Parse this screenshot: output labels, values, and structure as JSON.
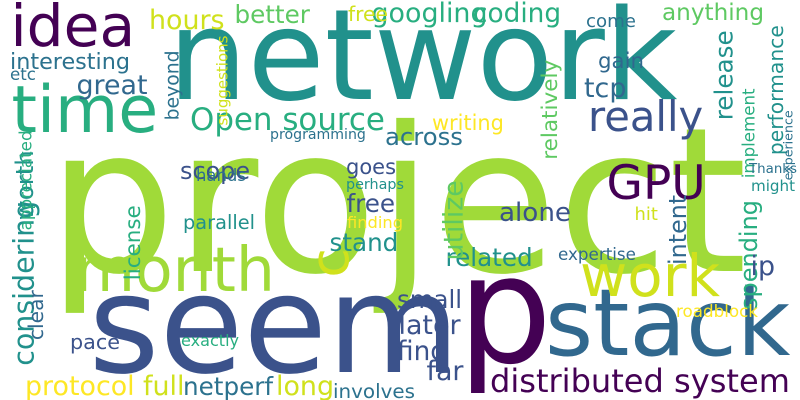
{
  "background": "#ffffff",
  "palette": {
    "dark_purple": "#440154",
    "purple_blue": "#3b528b",
    "blue": "#31688e",
    "teal_blue": "#2c728e",
    "teal": "#21918c",
    "green_teal": "#28ae80",
    "green": "#5ec962",
    "light_green": "#a0da39",
    "yellow_green": "#d0e11c",
    "yellow": "#fde725"
  },
  "words": [
    {
      "text": "project",
      "color": "#a0da39"
    },
    {
      "text": "network",
      "color": "#21918c"
    },
    {
      "text": "seem",
      "color": "#3b528b"
    },
    {
      "text": "p",
      "color": "#440154"
    },
    {
      "text": "stack",
      "color": "#31688e"
    },
    {
      "text": "idea",
      "color": "#440154"
    },
    {
      "text": "time",
      "color": "#28ae80"
    },
    {
      "text": "month",
      "color": "#a0da39"
    },
    {
      "text": "work",
      "color": "#d0e11c"
    },
    {
      "text": "c",
      "color": "#d0e11c"
    },
    {
      "text": "really",
      "color": "#3b528b"
    },
    {
      "text": "GPU",
      "color": "#440154"
    },
    {
      "text": "Open source",
      "color": "#28ae80"
    },
    {
      "text": "distributed system",
      "color": "#440154"
    },
    {
      "text": "googling",
      "color": "#28ae80"
    },
    {
      "text": "coding",
      "color": "#28ae80"
    },
    {
      "text": "anything",
      "color": "#5ec962"
    },
    {
      "text": "better",
      "color": "#5ec962"
    },
    {
      "text": "free",
      "color": "#d0e11c"
    },
    {
      "text": "hours",
      "color": "#d0e11c"
    },
    {
      "text": "interesting",
      "color": "#2c728e"
    },
    {
      "text": "great",
      "color": "#31688e"
    },
    {
      "text": "beyond",
      "color": "#2c728e"
    },
    {
      "text": "come",
      "color": "#2c728e"
    },
    {
      "text": "gain",
      "color": "#31688e"
    },
    {
      "text": "tcp",
      "color": "#31688e"
    },
    {
      "text": "release",
      "color": "#21918c"
    },
    {
      "text": "implement",
      "color": "#28ae80"
    },
    {
      "text": "performance",
      "color": "#21918c"
    },
    {
      "text": "writing",
      "color": "#fde725"
    },
    {
      "text": "across",
      "color": "#2c728e"
    },
    {
      "text": "relatively",
      "color": "#5ec962"
    },
    {
      "text": "goes",
      "color": "#3b528b"
    },
    {
      "text": "free",
      "color": "#3b528b"
    },
    {
      "text": "scope",
      "color": "#3b528b"
    },
    {
      "text": "alone",
      "color": "#3b528b"
    },
    {
      "text": "stand",
      "color": "#21918c"
    },
    {
      "text": "related",
      "color": "#21918c"
    },
    {
      "text": "intent",
      "color": "#31688e"
    },
    {
      "text": "utilize",
      "color": "#5ec962"
    },
    {
      "text": "might",
      "color": "#21918c"
    },
    {
      "text": "worth",
      "color": "#21918c"
    },
    {
      "text": "considering",
      "color": "#21918c"
    },
    {
      "text": "license",
      "color": "#28ae80"
    },
    {
      "text": "spending",
      "color": "#28ae80"
    },
    {
      "text": "ip",
      "color": "#3b528b"
    },
    {
      "text": "small",
      "color": "#3b528b"
    },
    {
      "text": "later",
      "color": "#3b528b"
    },
    {
      "text": "find",
      "color": "#3b528b"
    },
    {
      "text": "far",
      "color": "#3b528b"
    },
    {
      "text": "pace",
      "color": "#3b528b"
    },
    {
      "text": "protocol",
      "color": "#fde725"
    },
    {
      "text": "full",
      "color": "#d0e11c"
    },
    {
      "text": "netperf",
      "color": "#2c728e"
    },
    {
      "text": "long",
      "color": "#d0e11c"
    },
    {
      "text": "involves",
      "color": "#2c728e"
    },
    {
      "text": "hands",
      "color": "#2c728e"
    },
    {
      "text": "perhaps",
      "color": "#21918c"
    },
    {
      "text": "parallel",
      "color": "#21918c"
    },
    {
      "text": "finding",
      "color": "#fde725"
    },
    {
      "text": "expertise",
      "color": "#31688e"
    },
    {
      "text": "roadblock",
      "color": "#fde725"
    },
    {
      "text": "exactly",
      "color": "#28ae80"
    },
    {
      "text": "Thanks",
      "color": "#2c728e"
    },
    {
      "text": "hit",
      "color": "#d0e11c"
    },
    {
      "text": "suggestions",
      "color": "#d0e11c"
    },
    {
      "text": "etc",
      "color": "#2c728e"
    },
    {
      "text": "programming",
      "color": "#2c728e"
    },
    {
      "text": "appreciated",
      "color": "#28ae80"
    },
    {
      "text": "clear",
      "color": "#31688e"
    },
    {
      "text": "experience",
      "color": "#2c728e"
    }
  ]
}
